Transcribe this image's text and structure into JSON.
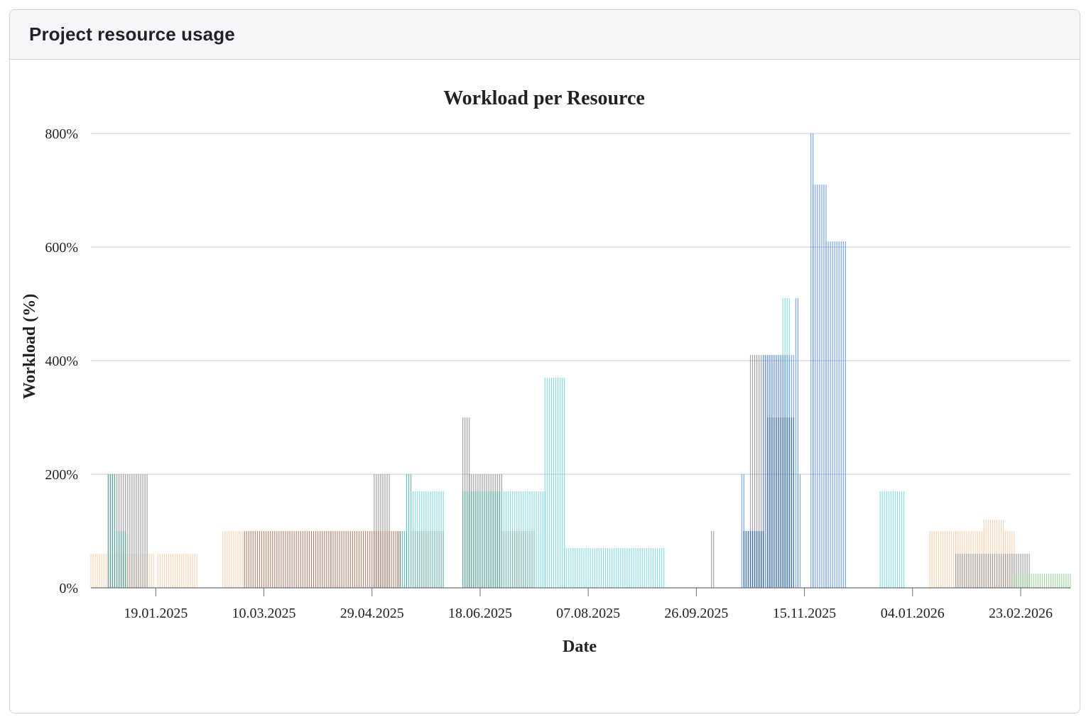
{
  "panel": {
    "title": "Project resource usage"
  },
  "colors": {
    "grid": "#cfd3da",
    "axis": "#6b6f78",
    "series": [
      "#f5c9a3",
      "#8a8a8a",
      "#4aa7a0",
      "#9b6e58",
      "#6fd0d6",
      "#5b8fd6",
      "#8cc98c",
      "#2f5f8f"
    ]
  },
  "chart_data": {
    "type": "bar",
    "title": "Workload per Resource",
    "xlabel": "Date",
    "ylabel": "Workload (%)",
    "x_range": [
      "2024-12-20",
      "2026-03-18"
    ],
    "ylim": [
      0,
      800
    ],
    "yticks": [
      0,
      200,
      400,
      600,
      800
    ],
    "ytick_labels": [
      "0%",
      "200%",
      "400%",
      "600%",
      "800%"
    ],
    "xticks": [
      "2025-01-19",
      "2025-03-10",
      "2025-04-29",
      "2025-06-18",
      "2025-08-07",
      "2025-09-26",
      "2025-11-15",
      "2026-01-04",
      "2026-02-23"
    ],
    "xtick_labels": [
      "19.01.2025",
      "10.03.2025",
      "29.04.2025",
      "18.06.2025",
      "07.08.2025",
      "26.09.2025",
      "15.11.2025",
      "04.01.2026",
      "23.02.2026"
    ],
    "grid": true,
    "legend": "none",
    "series": [
      {
        "color": "#f5c9a3",
        "segments": [
          {
            "start": "2024-12-20",
            "end": "2025-01-10",
            "value": 60
          },
          {
            "start": "2025-01-10",
            "end": "2025-01-18",
            "value": 60
          },
          {
            "start": "2025-01-20",
            "end": "2025-02-07",
            "value": 60
          },
          {
            "start": "2025-02-19",
            "end": "2025-03-01",
            "value": 100
          },
          {
            "start": "2026-01-12",
            "end": "2026-01-24",
            "value": 100
          },
          {
            "start": "2026-01-24",
            "end": "2026-02-06",
            "value": 100
          },
          {
            "start": "2026-02-06",
            "end": "2026-02-15",
            "value": 120
          },
          {
            "start": "2026-02-15",
            "end": "2026-02-20",
            "value": 100
          }
        ]
      },
      {
        "color": "#8a8a8a",
        "segments": [
          {
            "start": "2024-12-28",
            "end": "2025-01-15",
            "value": 200
          },
          {
            "start": "2025-04-30",
            "end": "2025-05-07",
            "value": 200
          },
          {
            "start": "2025-06-10",
            "end": "2025-06-13",
            "value": 300
          },
          {
            "start": "2025-06-13",
            "end": "2025-06-28",
            "value": 200
          },
          {
            "start": "2025-10-03",
            "end": "2025-10-04",
            "value": 100
          },
          {
            "start": "2025-10-21",
            "end": "2025-11-06",
            "value": 410
          },
          {
            "start": "2026-01-24",
            "end": "2026-02-27",
            "value": 60
          }
        ]
      },
      {
        "color": "#4aa7a0",
        "segments": [
          {
            "start": "2024-12-28",
            "end": "2024-12-31",
            "value": 200
          },
          {
            "start": "2025-01-01",
            "end": "2025-01-05",
            "value": 100
          },
          {
            "start": "2025-05-11",
            "end": "2025-05-15",
            "value": 100
          },
          {
            "start": "2025-05-15",
            "end": "2025-05-17",
            "value": 200
          },
          {
            "start": "2025-06-10",
            "end": "2025-06-28",
            "value": 170
          }
        ]
      },
      {
        "color": "#9b6e58",
        "segments": [
          {
            "start": "2025-03-01",
            "end": "2025-04-10",
            "value": 100
          },
          {
            "start": "2025-04-10",
            "end": "2025-05-12",
            "value": 100
          },
          {
            "start": "2025-05-17",
            "end": "2025-06-01",
            "value": 100
          },
          {
            "start": "2025-06-28",
            "end": "2025-07-13",
            "value": 100
          }
        ]
      },
      {
        "color": "#6fd0d6",
        "segments": [
          {
            "start": "2025-05-17",
            "end": "2025-06-01",
            "value": 170
          },
          {
            "start": "2025-06-28",
            "end": "2025-07-18",
            "value": 170
          },
          {
            "start": "2025-07-18",
            "end": "2025-07-27",
            "value": 370
          },
          {
            "start": "2025-07-27",
            "end": "2025-09-11",
            "value": 70
          },
          {
            "start": "2025-11-05",
            "end": "2025-11-08",
            "value": 510
          },
          {
            "start": "2025-12-20",
            "end": "2025-12-31",
            "value": 170
          }
        ]
      },
      {
        "color": "#5b8fd6",
        "segments": [
          {
            "start": "2025-10-17",
            "end": "2025-10-18",
            "value": 200
          },
          {
            "start": "2025-10-18",
            "end": "2025-10-27",
            "value": 100
          },
          {
            "start": "2025-10-27",
            "end": "2025-11-10",
            "value": 410
          },
          {
            "start": "2025-11-11",
            "end": "2025-11-12",
            "value": 510
          },
          {
            "start": "2025-11-12",
            "end": "2025-11-13",
            "value": 200
          },
          {
            "start": "2025-11-18",
            "end": "2025-11-19",
            "value": 800
          },
          {
            "start": "2025-11-19",
            "end": "2025-11-25",
            "value": 710
          },
          {
            "start": "2025-11-25",
            "end": "2025-12-04",
            "value": 610
          }
        ]
      },
      {
        "color": "#8cc98c",
        "segments": [
          {
            "start": "2026-02-20",
            "end": "2026-03-18",
            "value": 25
          }
        ]
      },
      {
        "color": "#2f5f8f",
        "segments": [
          {
            "start": "2025-10-18",
            "end": "2025-10-27",
            "value": 100
          },
          {
            "start": "2025-10-29",
            "end": "2025-11-10",
            "value": 300
          }
        ]
      }
    ]
  }
}
